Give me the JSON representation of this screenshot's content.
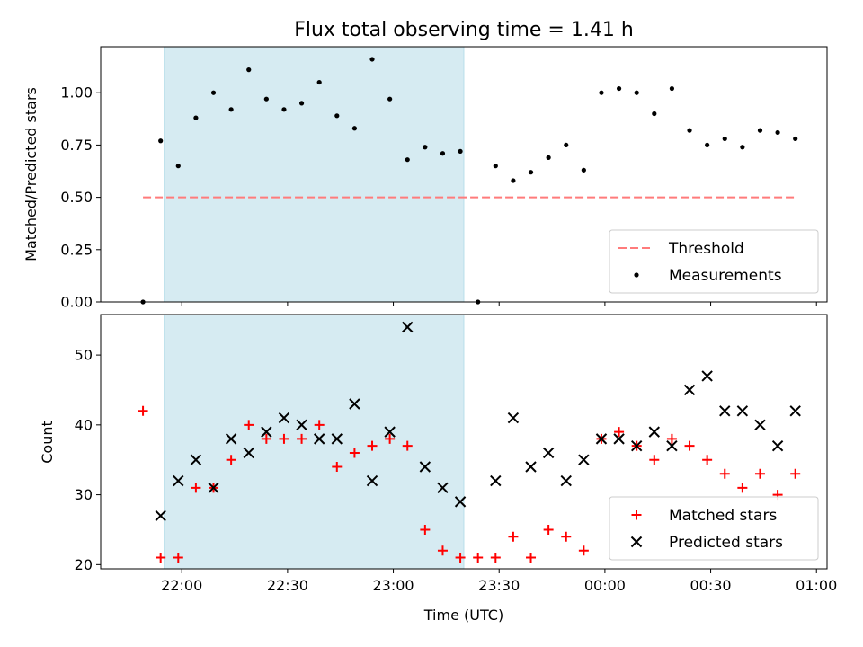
{
  "chart_data": [
    {
      "type": "scatter",
      "title": "Flux total observing time = 1.41 h",
      "xlabel": "",
      "ylabel": "Matched/Predicted stars",
      "ylim": [
        0,
        1.22
      ],
      "yticks": [
        0.0,
        0.25,
        0.5,
        0.75,
        1.0
      ],
      "ytick_labels": [
        "0.00",
        "0.25",
        "0.50",
        "0.75",
        "1.00"
      ],
      "xlim": [
        "21:37",
        "01:03"
      ],
      "xticks": [
        "22:00",
        "22:30",
        "23:00",
        "23:30",
        "00:00",
        "00:30",
        "01:00"
      ],
      "highlight_span": [
        "21:55",
        "23:20"
      ],
      "grid": false,
      "legend_position": "lower-right",
      "threshold": {
        "name": "Threshold",
        "value": 0.5,
        "x": [
          "21:49",
          "00:54"
        ],
        "color": "#ff7b7b"
      },
      "series": [
        {
          "name": "Measurements",
          "color": "#000000",
          "marker": "dot",
          "x": [
            "21:49",
            "21:54",
            "21:59",
            "22:04",
            "22:09",
            "22:14",
            "22:19",
            "22:24",
            "22:29",
            "22:34",
            "22:39",
            "22:44",
            "22:49",
            "22:54",
            "22:59",
            "23:04",
            "23:09",
            "23:14",
            "23:19",
            "23:24",
            "23:29",
            "23:34",
            "23:39",
            "23:44",
            "23:49",
            "23:54",
            "23:59",
            "00:04",
            "00:09",
            "00:14",
            "00:19",
            "00:24",
            "00:29",
            "00:34",
            "00:39",
            "00:44",
            "00:49",
            "00:54"
          ],
          "y": [
            0.0,
            0.77,
            0.65,
            0.88,
            1.0,
            0.92,
            1.11,
            0.97,
            0.92,
            0.95,
            1.05,
            0.89,
            0.83,
            1.16,
            0.97,
            0.68,
            0.74,
            0.71,
            0.72,
            0.0,
            0.65,
            0.58,
            0.62,
            0.69,
            0.75,
            0.63,
            1.0,
            1.02,
            1.0,
            0.9,
            1.02,
            0.82,
            0.75,
            0.78,
            0.74,
            0.82,
            0.81,
            0.78
          ]
        }
      ]
    },
    {
      "type": "scatter",
      "title": "",
      "xlabel": "Time (UTC)",
      "ylabel": "Count",
      "ylim": [
        19.4,
        55.8
      ],
      "yticks": [
        20,
        30,
        40,
        50
      ],
      "ytick_labels": [
        "20",
        "30",
        "40",
        "50"
      ],
      "xlim": [
        "21:37",
        "01:03"
      ],
      "xticks": [
        "22:00",
        "22:30",
        "23:00",
        "23:30",
        "00:00",
        "00:30",
        "01:00"
      ],
      "xtick_labels": [
        "22:00",
        "22:30",
        "23:00",
        "23:30",
        "00:00",
        "00:30",
        "01:00"
      ],
      "highlight_span": [
        "21:55",
        "23:20"
      ],
      "grid": false,
      "legend_position": "lower-right",
      "series": [
        {
          "name": "Matched stars",
          "color": "#ff0000",
          "marker": "plus",
          "x": [
            "21:49",
            "21:54",
            "21:59",
            "22:04",
            "22:09",
            "22:14",
            "22:19",
            "22:24",
            "22:29",
            "22:34",
            "22:39",
            "22:44",
            "22:49",
            "22:54",
            "22:59",
            "23:04",
            "23:09",
            "23:14",
            "23:19",
            "23:24",
            "23:29",
            "23:34",
            "23:39",
            "23:44",
            "23:49",
            "23:54",
            "23:59",
            "00:04",
            "00:09",
            "00:14",
            "00:19",
            "00:24",
            "00:29",
            "00:34",
            "00:39",
            "00:44",
            "00:49",
            "00:54"
          ],
          "y": [
            42,
            21,
            21,
            31,
            31,
            35,
            40,
            38,
            38,
            38,
            40,
            34,
            36,
            37,
            38,
            37,
            25,
            22,
            21,
            21,
            21,
            24,
            21,
            25,
            24,
            22,
            38,
            39,
            37,
            35,
            38,
            37,
            35,
            33,
            31,
            33,
            30,
            33
          ]
        },
        {
          "name": "Predicted stars",
          "color": "#000000",
          "marker": "x",
          "x": [
            "21:54",
            "21:59",
            "22:04",
            "22:09",
            "22:14",
            "22:19",
            "22:24",
            "22:29",
            "22:34",
            "22:39",
            "22:44",
            "22:49",
            "22:54",
            "22:59",
            "23:04",
            "23:09",
            "23:14",
            "23:19",
            "23:29",
            "23:34",
            "23:39",
            "23:44",
            "23:49",
            "23:54",
            "23:59",
            "00:04",
            "00:09",
            "00:14",
            "00:19",
            "00:24",
            "00:29",
            "00:34",
            "00:39",
            "00:44",
            "00:49",
            "00:54"
          ],
          "y": [
            27,
            32,
            35,
            31,
            38,
            36,
            39,
            41,
            40,
            38,
            38,
            43,
            32,
            39,
            54,
            34,
            31,
            29,
            32,
            41,
            34,
            36,
            32,
            35,
            38,
            38,
            37,
            39,
            37,
            45,
            47,
            42,
            42,
            40,
            37,
            42
          ]
        }
      ]
    }
  ]
}
